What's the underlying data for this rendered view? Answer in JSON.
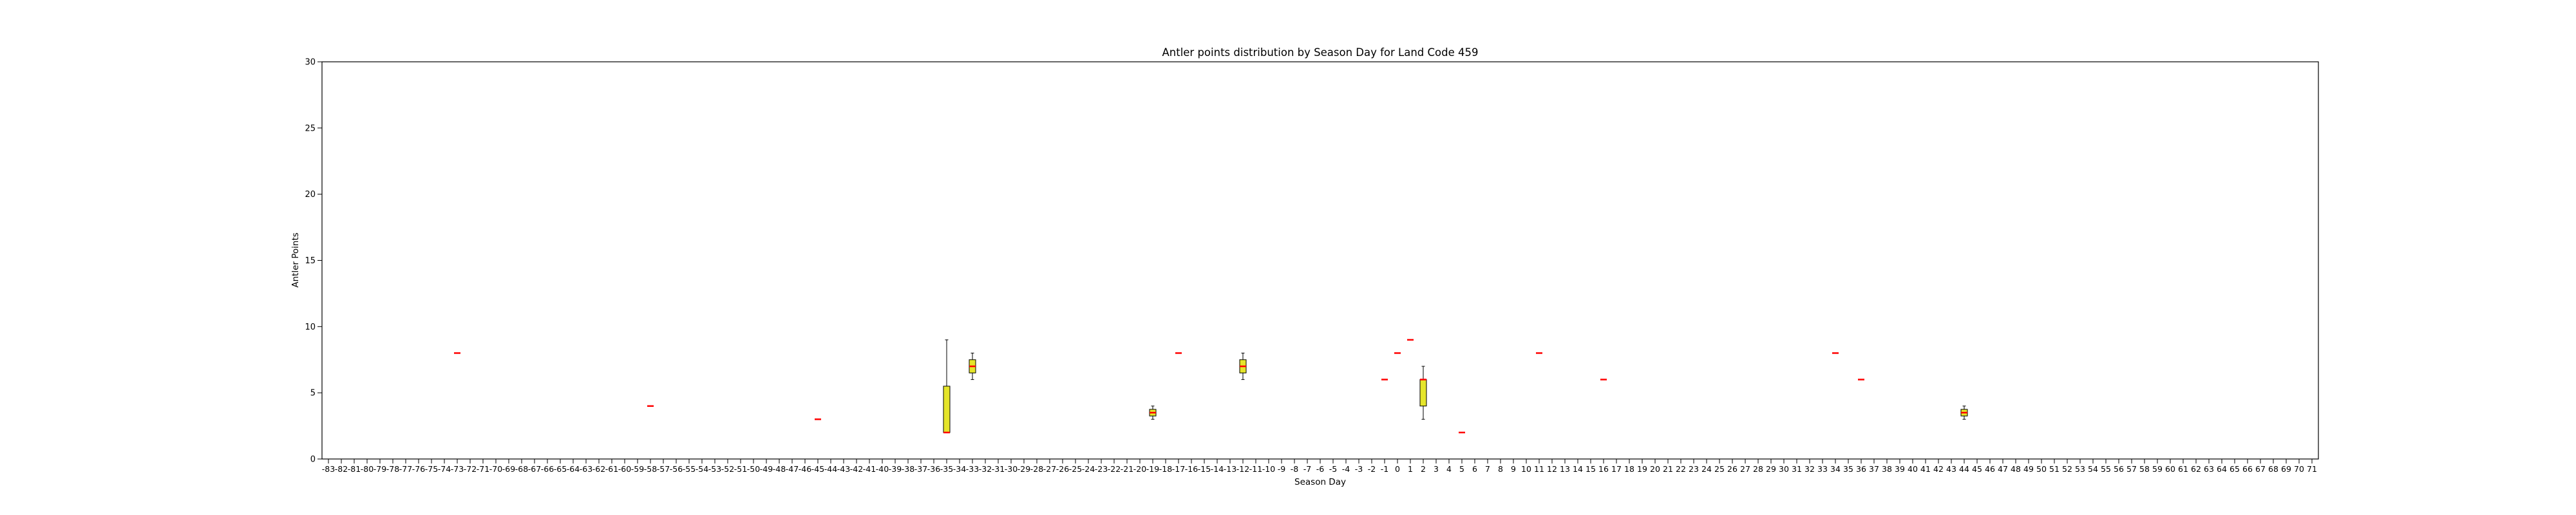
{
  "chart_data": {
    "type": "box",
    "title": "Antler points distribution by Season Day for Land Code 459",
    "xlabel": "Season Day",
    "ylabel": "Antler Points",
    "ylim": [
      0,
      30
    ],
    "yticks": [
      0,
      5,
      10,
      15,
      20,
      25,
      30
    ],
    "x_range": [
      -83,
      71
    ],
    "colors": {
      "box_fill": "#e5e52a",
      "median": "#ff0000",
      "box_edge": "#000000",
      "frame": "#000000"
    },
    "boxes": [
      {
        "day": -73,
        "min": 8,
        "q1": 8,
        "median": 8,
        "q3": 8,
        "max": 8
      },
      {
        "day": -58,
        "min": 4,
        "q1": 4,
        "median": 4,
        "q3": 4,
        "max": 4
      },
      {
        "day": -45,
        "min": 3,
        "q1": 3,
        "median": 3,
        "q3": 3,
        "max": 3
      },
      {
        "day": -35,
        "min": 2,
        "q1": 2,
        "median": 2,
        "q3": 5.5,
        "max": 9
      },
      {
        "day": -33,
        "min": 6,
        "q1": 6.5,
        "median": 7,
        "q3": 7.5,
        "max": 8
      },
      {
        "day": -19,
        "min": 3,
        "q1": 3.25,
        "median": 3.5,
        "q3": 3.75,
        "max": 4
      },
      {
        "day": -17,
        "min": 8,
        "q1": 8,
        "median": 8,
        "q3": 8,
        "max": 8
      },
      {
        "day": -12,
        "min": 6,
        "q1": 6.5,
        "median": 7,
        "q3": 7.5,
        "max": 8
      },
      {
        "day": -1,
        "min": 6,
        "q1": 6,
        "median": 6,
        "q3": 6,
        "max": 6
      },
      {
        "day": 0,
        "min": 8,
        "q1": 8,
        "median": 8,
        "q3": 8,
        "max": 8
      },
      {
        "day": 1,
        "min": 9,
        "q1": 9,
        "median": 9,
        "q3": 9,
        "max": 9
      },
      {
        "day": 2,
        "min": 3,
        "q1": 4,
        "median": 6,
        "q3": 6,
        "max": 7
      },
      {
        "day": 5,
        "min": 2,
        "q1": 2,
        "median": 2,
        "q3": 2,
        "max": 2
      },
      {
        "day": 11,
        "min": 8,
        "q1": 8,
        "median": 8,
        "q3": 8,
        "max": 8
      },
      {
        "day": 16,
        "min": 6,
        "q1": 6,
        "median": 6,
        "q3": 6,
        "max": 6
      },
      {
        "day": 34,
        "min": 8,
        "q1": 8,
        "median": 8,
        "q3": 8,
        "max": 8
      },
      {
        "day": 36,
        "min": 6,
        "q1": 6,
        "median": 6,
        "q3": 6,
        "max": 6
      },
      {
        "day": 44,
        "min": 3,
        "q1": 3.25,
        "median": 3.5,
        "q3": 3.75,
        "max": 4
      }
    ]
  }
}
